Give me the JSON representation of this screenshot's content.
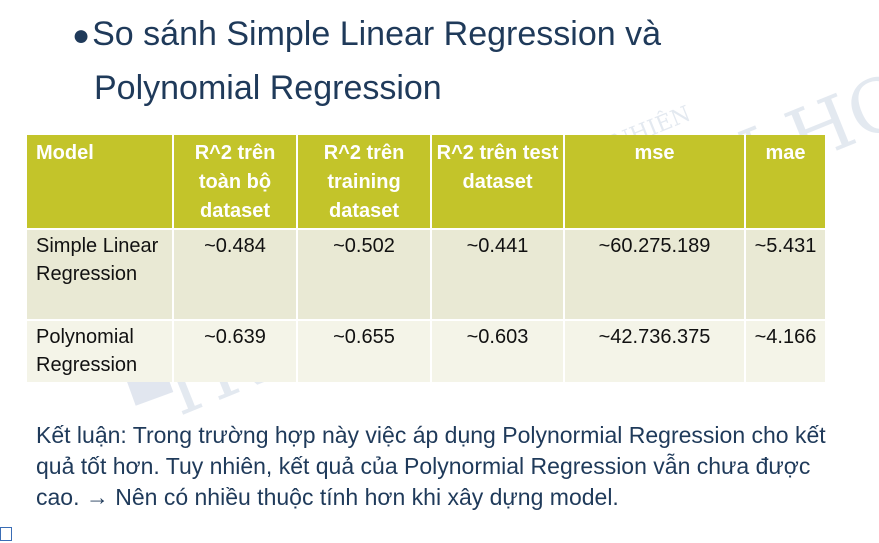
{
  "title": {
    "bullet": "●",
    "line1": "So sánh Simple Linear Regression và",
    "line2": "Polynomial Regression"
  },
  "table": {
    "headers": [
      "Model",
      "R^2 trên toàn bộ dataset",
      "R^2 trên training dataset",
      "R^2 trên test dataset",
      "mse",
      "mae"
    ],
    "rows": [
      [
        "Simple Linear Regression",
        "~0.484",
        "~0.502",
        "~0.441",
        "~60.275.189",
        "~5.431"
      ],
      [
        "Polynomial Regression",
        "~0.639",
        "~0.655",
        "~0.603",
        "~42.736.375",
        "~4.166"
      ]
    ]
  },
  "conclusion": "Kết luận: Trong trường hợp này việc áp dụng Polynormial Regression cho kết quả tốt hơn. Tuy nhiên, kết quả của Polynormial Regression vẫn chưa được cao. → Nên có nhiều thuộc tính hơn khi xây dựng model.",
  "watermark": {
    "arc_text": "TRƯỜNG ĐẠI HỌC KHOA HỌC TỰ NHIÊN",
    "main_text": "TRUNG TÂM TIN HỌC"
  },
  "colors": {
    "header_bg": "#c3c42a",
    "row1_bg": "#e9e9d4",
    "row2_bg": "#f4f4e8",
    "title_text": "#1f3a5a"
  }
}
